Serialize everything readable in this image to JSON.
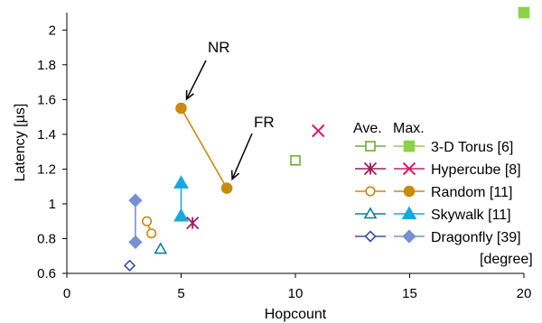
{
  "chart_data": {
    "type": "scatter",
    "xlabel": "Hopcount",
    "ylabel": "Latency [µs]",
    "xlim": [
      0,
      20
    ],
    "ylim": [
      0.6,
      2.1
    ],
    "x_ticks": [
      "0",
      "5",
      "10",
      "15",
      "20"
    ],
    "y_ticks": [
      "0.6",
      "0.8",
      "1",
      "1.2",
      "1.4",
      "1.6",
      "1.8",
      "2"
    ],
    "grid": false,
    "legend": {
      "placement": "right",
      "header_ave": "Ave.",
      "header_max": "Max.",
      "footer": "[degree]"
    },
    "series": [
      {
        "name": "3-D Torus [6]",
        "color": "#6aab3e",
        "max_color": "#8bd14a",
        "ave_marker": "open-square",
        "max_marker": "filled-square",
        "ave": {
          "x": 10.0,
          "y": 1.25
        },
        "max": {
          "x": 20.0,
          "y": 2.1
        },
        "connected": false
      },
      {
        "name": "Hypercube [8]",
        "color": "#a4185a",
        "max_color": "#cc1f6a",
        "ave_marker": "asterisk",
        "max_marker": "x",
        "ave": {
          "x": 5.5,
          "y": 0.89
        },
        "max": {
          "x": 11.0,
          "y": 1.42
        },
        "connected": false
      },
      {
        "name": "Random [11]",
        "color": "#c88a11",
        "max_color": "#c88a11",
        "ave_marker": "open-circle",
        "max_marker": "filled-circle",
        "ave": [
          {
            "x": 3.5,
            "y": 0.9
          },
          {
            "x": 3.7,
            "y": 0.83
          }
        ],
        "max": [
          {
            "x": 5.0,
            "y": 1.55
          },
          {
            "x": 7.0,
            "y": 1.09
          }
        ],
        "connected": true
      },
      {
        "name": "Skywalk [11]",
        "color": "#0f7e8c",
        "max_color": "#19a8d8",
        "ave_marker": "open-triangle",
        "max_marker": "filled-triangle",
        "ave": {
          "x": 4.1,
          "y": 0.74
        },
        "max": [
          {
            "x": 5.0,
            "y": 1.12
          },
          {
            "x": 5.0,
            "y": 0.93
          }
        ],
        "connected": true
      },
      {
        "name": "Dragonfly [39]",
        "color": "#3d4f9c",
        "max_color": "#7a90d0",
        "ave_marker": "open-diamond",
        "max_marker": "filled-diamond",
        "ave": {
          "x": 2.75,
          "y": 0.645
        },
        "max": [
          {
            "x": 3.0,
            "y": 1.02
          },
          {
            "x": 3.0,
            "y": 0.78
          }
        ],
        "connected": true
      }
    ],
    "annotations": [
      {
        "text": "NR",
        "target": {
          "x": 5.0,
          "y": 1.55
        }
      },
      {
        "text": "FR",
        "target": {
          "x": 7.0,
          "y": 1.09
        }
      }
    ]
  }
}
